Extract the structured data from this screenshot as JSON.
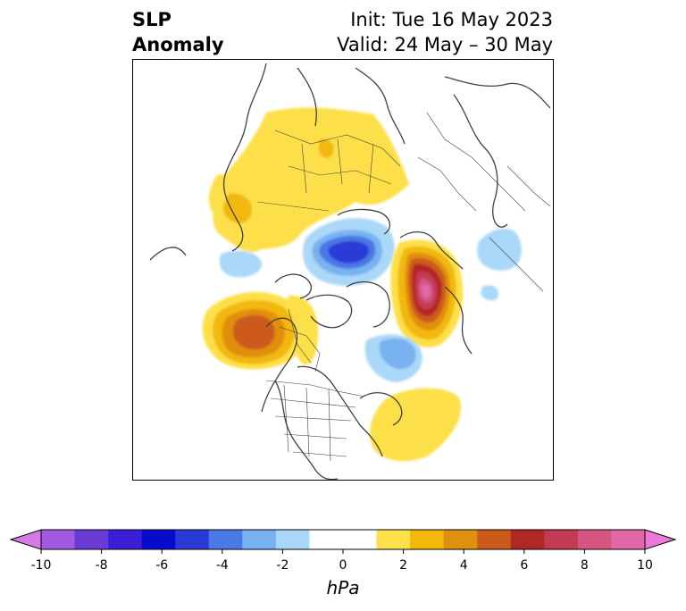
{
  "title": {
    "left_line1": "SLP",
    "left_line2": "Anomaly",
    "init": "Init: Tue 16 May 2023",
    "valid": "Valid: 24 May – 30 May"
  },
  "colorbar": {
    "unit": "hPa",
    "ticks": [
      "-10",
      "-8",
      "-6",
      "-4",
      "-2",
      "0",
      "2",
      "4",
      "6",
      "8",
      "10"
    ],
    "colors": [
      "#d67ae6",
      "#a05ae0",
      "#6a3ad6",
      "#3a1fd6",
      "#0a0acc",
      "#2a3ad6",
      "#4a78e6",
      "#78b2f0",
      "#aad8f8",
      "#ffffff",
      "#ffffff",
      "#fde04a",
      "#f2b80c",
      "#e08f10",
      "#cc5a1a",
      "#b32626",
      "#c43a55",
      "#d45580",
      "#e06aa8",
      "#ec78d8"
    ]
  },
  "anomaly_colors": {
    "neg_light": "#aad8f8",
    "neg_mid": "#78b2f0",
    "neg_deep": "#4a78e6",
    "neg_core": "#2a3ad6",
    "pos_light": "#fde04a",
    "pos_mid": "#f2b80c",
    "pos_deep": "#e08f10",
    "pos_core": "#cc5a1a",
    "pos_red": "#b32626",
    "pos_pink": "#c43a55",
    "pos_magenta": "#d45580"
  }
}
